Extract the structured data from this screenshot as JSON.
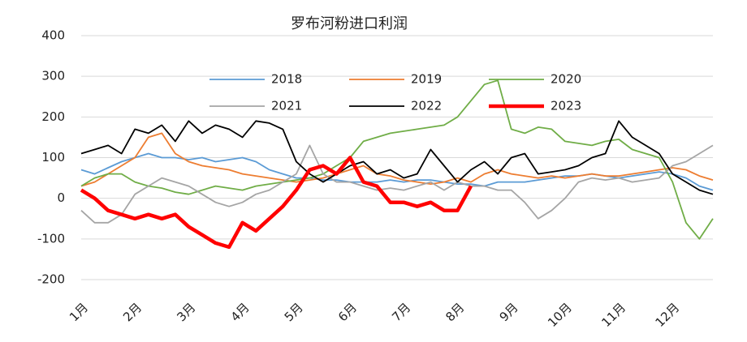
{
  "chart_data": {
    "type": "line",
    "title": "罗布河粉进口利润",
    "categories": [
      "1月",
      null,
      null,
      null,
      "2月",
      null,
      null,
      null,
      "3月",
      null,
      null,
      null,
      "4月",
      null,
      null,
      null,
      "5月",
      null,
      null,
      null,
      "6月",
      null,
      null,
      null,
      "7月",
      null,
      null,
      null,
      "8月",
      null,
      null,
      null,
      "9月",
      null,
      null,
      null,
      "10月",
      null,
      null,
      null,
      "11月",
      null,
      null,
      null,
      "12月",
      null,
      null,
      null
    ],
    "ylim": [
      -200,
      400
    ],
    "yticks": [
      -200,
      -100,
      0,
      100,
      200,
      300,
      400
    ],
    "grid": true,
    "series": [
      {
        "name": "2018",
        "color": "#5b9bd5",
        "values": [
          70,
          60,
          75,
          90,
          100,
          110,
          100,
          100,
          95,
          100,
          90,
          95,
          100,
          90,
          70,
          60,
          50,
          50,
          45,
          45,
          40,
          40,
          40,
          45,
          40,
          45,
          45,
          40,
          35,
          35,
          30,
          40,
          40,
          40,
          45,
          50,
          55,
          55,
          60,
          55,
          50,
          55,
          60,
          65,
          60,
          50,
          30,
          20
        ]
      },
      {
        "name": "2019",
        "color": "#ed7d31",
        "values": [
          30,
          40,
          60,
          80,
          100,
          150,
          160,
          110,
          90,
          80,
          75,
          70,
          60,
          55,
          50,
          45,
          40,
          45,
          50,
          60,
          70,
          80,
          60,
          55,
          45,
          40,
          35,
          40,
          50,
          40,
          60,
          70,
          60,
          55,
          50,
          55,
          50,
          55,
          60,
          55,
          55,
          60,
          65,
          70,
          75,
          70,
          55,
          45
        ]
      },
      {
        "name": "2020",
        "color": "#70ad47",
        "values": [
          30,
          50,
          60,
          60,
          40,
          30,
          25,
          15,
          10,
          20,
          30,
          25,
          20,
          30,
          35,
          40,
          45,
          50,
          60,
          80,
          100,
          140,
          150,
          160,
          165,
          170,
          175,
          180,
          200,
          240,
          280,
          290,
          170,
          160,
          175,
          170,
          140,
          135,
          130,
          140,
          145,
          120,
          110,
          100,
          40,
          -60,
          -100,
          -50
        ]
      },
      {
        "name": "2021",
        "color": "#a5a5a5",
        "values": [
          -30,
          -60,
          -60,
          -40,
          10,
          30,
          50,
          40,
          30,
          10,
          -10,
          -20,
          -10,
          10,
          20,
          40,
          60,
          130,
          60,
          40,
          40,
          30,
          20,
          25,
          20,
          30,
          40,
          20,
          40,
          30,
          30,
          20,
          20,
          -10,
          -50,
          -30,
          0,
          40,
          50,
          45,
          50,
          40,
          45,
          50,
          80,
          90,
          110,
          130
        ]
      },
      {
        "name": "2022",
        "color": "#000000",
        "values": [
          110,
          120,
          130,
          110,
          170,
          160,
          180,
          140,
          190,
          160,
          180,
          170,
          150,
          190,
          185,
          170,
          90,
          60,
          40,
          60,
          80,
          90,
          60,
          70,
          50,
          60,
          120,
          80,
          40,
          70,
          90,
          60,
          100,
          110,
          60,
          65,
          70,
          80,
          100,
          110,
          190,
          150,
          130,
          110,
          60,
          40,
          20,
          10
        ]
      },
      {
        "name": "2023",
        "color": "#ff0000",
        "values": [
          20,
          0,
          -30,
          -40,
          -50,
          -40,
          -50,
          -40,
          -70,
          -90,
          -110,
          -120,
          -60,
          -80,
          -50,
          -20,
          20,
          70,
          80,
          60,
          100,
          40,
          30,
          -10,
          -10,
          -20,
          -10,
          -30,
          -30,
          30,
          null,
          null,
          null,
          null,
          null,
          null,
          null,
          null,
          null,
          null,
          null,
          null,
          null,
          null,
          null,
          null,
          null,
          null
        ]
      }
    ]
  }
}
